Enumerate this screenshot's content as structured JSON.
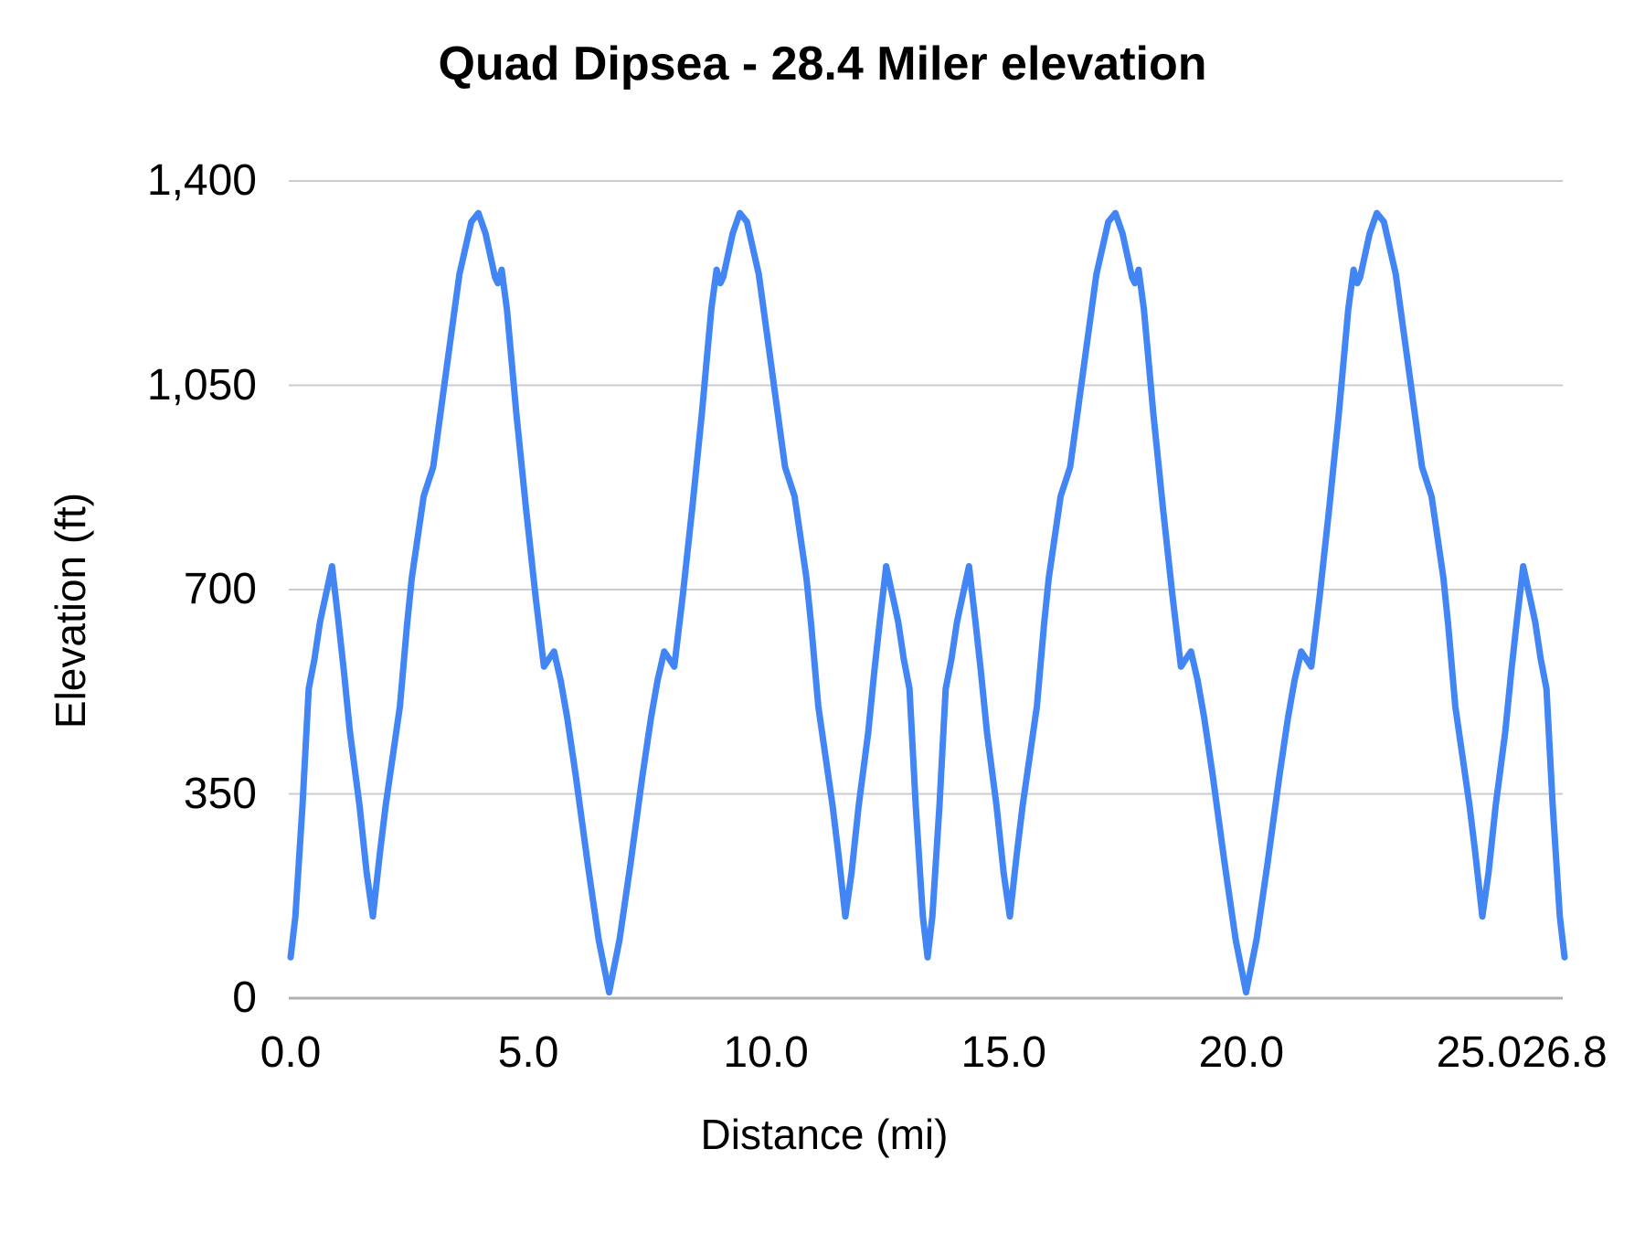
{
  "chart_data": {
    "type": "line",
    "title": "Quad Dipsea - 28.4 Miler elevation",
    "xlabel": "Distance (mi)",
    "ylabel": "Elevation (ft)",
    "xlim": [
      0,
      26.8
    ],
    "ylim": [
      0,
      1400
    ],
    "grid": "horizontal-only",
    "legend": "none",
    "line_color": "#4285f4",
    "gridline_color": "#cccccc",
    "baseline_color": "#b0b0b0",
    "text_color": "#000000",
    "background_color": "#ffffff",
    "x_ticks": [
      {
        "value": 0,
        "label": "0.0"
      },
      {
        "value": 5,
        "label": "5.0"
      },
      {
        "value": 10,
        "label": "10.0"
      },
      {
        "value": 15,
        "label": "15.0"
      },
      {
        "value": 20,
        "label": "20.0"
      },
      {
        "value": 25,
        "label": "25.0"
      },
      {
        "value": 26.8,
        "label": "26.8"
      }
    ],
    "y_ticks": [
      {
        "value": 0,
        "label": "0"
      },
      {
        "value": 350,
        "label": "350"
      },
      {
        "value": 700,
        "label": "700"
      },
      {
        "value": 1050,
        "label": "1,050"
      },
      {
        "value": 1400,
        "label": "1,400"
      }
    ],
    "series": [
      {
        "name": "elevation",
        "points": [
          [
            0.0,
            70
          ],
          [
            0.1,
            140
          ],
          [
            0.25,
            330
          ],
          [
            0.38,
            530
          ],
          [
            0.5,
            580
          ],
          [
            0.62,
            645
          ],
          [
            0.87,
            740
          ],
          [
            1.0,
            650
          ],
          [
            1.12,
            560
          ],
          [
            1.25,
            455
          ],
          [
            1.45,
            330
          ],
          [
            1.6,
            215
          ],
          [
            1.73,
            140
          ],
          [
            1.88,
            250
          ],
          [
            2.0,
            330
          ],
          [
            2.3,
            500
          ],
          [
            2.45,
            640
          ],
          [
            2.55,
            720
          ],
          [
            2.8,
            860
          ],
          [
            3.0,
            910
          ],
          [
            3.3,
            1090
          ],
          [
            3.55,
            1240
          ],
          [
            3.8,
            1330
          ],
          [
            3.95,
            1345
          ],
          [
            4.1,
            1310
          ],
          [
            4.3,
            1235
          ],
          [
            4.36,
            1225
          ],
          [
            4.44,
            1248
          ],
          [
            4.55,
            1180
          ],
          [
            4.75,
            1000
          ],
          [
            4.95,
            840
          ],
          [
            5.15,
            690
          ],
          [
            5.33,
            568
          ],
          [
            5.44,
            582
          ],
          [
            5.54,
            594
          ],
          [
            5.68,
            545
          ],
          [
            5.82,
            480
          ],
          [
            6.0,
            380
          ],
          [
            6.25,
            230
          ],
          [
            6.48,
            100
          ],
          [
            6.7,
            10
          ],
          [
            6.92,
            100
          ],
          [
            7.15,
            230
          ],
          [
            7.4,
            380
          ],
          [
            7.58,
            480
          ],
          [
            7.72,
            545
          ],
          [
            7.86,
            594
          ],
          [
            7.96,
            582
          ],
          [
            8.07,
            568
          ],
          [
            8.25,
            690
          ],
          [
            8.45,
            840
          ],
          [
            8.65,
            1000
          ],
          [
            8.85,
            1180
          ],
          [
            8.96,
            1248
          ],
          [
            9.04,
            1225
          ],
          [
            9.1,
            1235
          ],
          [
            9.3,
            1310
          ],
          [
            9.45,
            1345
          ],
          [
            9.6,
            1330
          ],
          [
            9.85,
            1240
          ],
          [
            10.1,
            1090
          ],
          [
            10.4,
            910
          ],
          [
            10.6,
            860
          ],
          [
            10.85,
            720
          ],
          [
            10.95,
            640
          ],
          [
            11.1,
            500
          ],
          [
            11.4,
            330
          ],
          [
            11.52,
            250
          ],
          [
            11.67,
            140
          ],
          [
            11.8,
            215
          ],
          [
            11.95,
            330
          ],
          [
            12.15,
            455
          ],
          [
            12.28,
            560
          ],
          [
            12.4,
            650
          ],
          [
            12.53,
            740
          ],
          [
            12.78,
            645
          ],
          [
            12.9,
            580
          ],
          [
            13.02,
            530
          ],
          [
            13.15,
            330
          ],
          [
            13.3,
            140
          ],
          [
            13.4,
            70
          ],
          [
            13.5,
            140
          ],
          [
            13.65,
            330
          ],
          [
            13.78,
            530
          ],
          [
            13.9,
            580
          ],
          [
            14.02,
            645
          ],
          [
            14.27,
            740
          ],
          [
            14.4,
            650
          ],
          [
            14.52,
            560
          ],
          [
            14.65,
            455
          ],
          [
            14.85,
            330
          ],
          [
            15.0,
            215
          ],
          [
            15.13,
            140
          ],
          [
            15.28,
            250
          ],
          [
            15.4,
            330
          ],
          [
            15.7,
            500
          ],
          [
            15.85,
            640
          ],
          [
            15.95,
            720
          ],
          [
            16.2,
            860
          ],
          [
            16.4,
            910
          ],
          [
            16.7,
            1090
          ],
          [
            16.95,
            1240
          ],
          [
            17.2,
            1330
          ],
          [
            17.35,
            1345
          ],
          [
            17.5,
            1310
          ],
          [
            17.7,
            1235
          ],
          [
            17.76,
            1225
          ],
          [
            17.84,
            1248
          ],
          [
            17.95,
            1180
          ],
          [
            18.15,
            1000
          ],
          [
            18.35,
            840
          ],
          [
            18.55,
            690
          ],
          [
            18.73,
            568
          ],
          [
            18.84,
            582
          ],
          [
            18.94,
            594
          ],
          [
            19.08,
            545
          ],
          [
            19.22,
            480
          ],
          [
            19.4,
            380
          ],
          [
            19.65,
            230
          ],
          [
            19.88,
            100
          ],
          [
            20.1,
            10
          ],
          [
            20.32,
            100
          ],
          [
            20.55,
            230
          ],
          [
            20.8,
            380
          ],
          [
            20.98,
            480
          ],
          [
            21.12,
            545
          ],
          [
            21.26,
            594
          ],
          [
            21.36,
            582
          ],
          [
            21.47,
            568
          ],
          [
            21.65,
            690
          ],
          [
            21.85,
            840
          ],
          [
            22.05,
            1000
          ],
          [
            22.25,
            1180
          ],
          [
            22.36,
            1248
          ],
          [
            22.44,
            1225
          ],
          [
            22.5,
            1235
          ],
          [
            22.7,
            1310
          ],
          [
            22.85,
            1345
          ],
          [
            23.0,
            1330
          ],
          [
            23.25,
            1240
          ],
          [
            23.5,
            1090
          ],
          [
            23.8,
            910
          ],
          [
            24.0,
            860
          ],
          [
            24.25,
            720
          ],
          [
            24.35,
            640
          ],
          [
            24.5,
            500
          ],
          [
            24.8,
            330
          ],
          [
            24.92,
            250
          ],
          [
            25.07,
            140
          ],
          [
            25.2,
            215
          ],
          [
            25.35,
            330
          ],
          [
            25.55,
            455
          ],
          [
            25.68,
            560
          ],
          [
            25.8,
            650
          ],
          [
            25.93,
            740
          ],
          [
            26.18,
            645
          ],
          [
            26.3,
            580
          ],
          [
            26.42,
            530
          ],
          [
            26.55,
            330
          ],
          [
            26.7,
            140
          ],
          [
            26.8,
            70
          ]
        ]
      }
    ]
  }
}
